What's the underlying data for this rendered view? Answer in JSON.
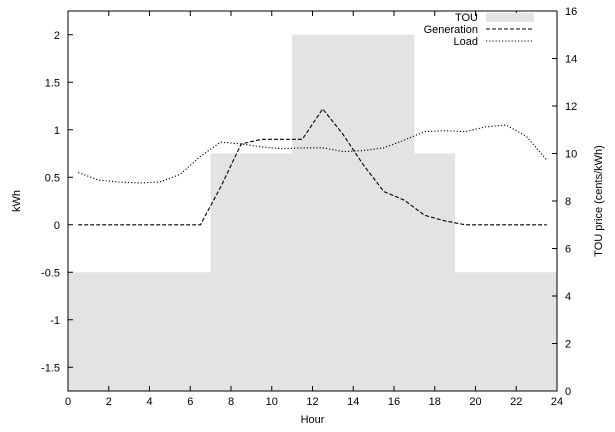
{
  "chart_data": {
    "type": "line",
    "xlabel": "Hour",
    "ylabel_left": "kWh",
    "ylabel_right": "TOU price (cents/kWh)",
    "xlim": [
      0,
      24
    ],
    "ylim_left": [
      -1.75,
      2.25
    ],
    "ylim_right": [
      0,
      16
    ],
    "x_ticks": [
      0,
      2,
      4,
      6,
      8,
      10,
      12,
      14,
      16,
      18,
      20,
      22,
      24
    ],
    "y_ticks_left": [
      -1.5,
      -1,
      -0.5,
      0,
      0.5,
      1,
      1.5,
      2
    ],
    "y_ticks_right": [
      0,
      2,
      4,
      6,
      8,
      10,
      12,
      14,
      16
    ],
    "legend_position": "top-right",
    "colors": {
      "tou": "#e3e3e3",
      "lines": "#000000"
    },
    "series": [
      {
        "name": "TOU",
        "style": "bars",
        "axis": "right",
        "segments": [
          {
            "x_start": 0,
            "x_end": 7,
            "value": 5
          },
          {
            "x_start": 7,
            "x_end": 11,
            "value": 10
          },
          {
            "x_start": 11,
            "x_end": 17,
            "value": 15
          },
          {
            "x_start": 17,
            "x_end": 19,
            "value": 10
          },
          {
            "x_start": 19,
            "x_end": 24,
            "value": 5
          }
        ]
      },
      {
        "name": "Generation",
        "style": "dashed",
        "axis": "left",
        "x": [
          0.5,
          1.5,
          2.5,
          3.5,
          4.5,
          5.5,
          6.5,
          7.5,
          8.5,
          9.5,
          10.5,
          11.5,
          12.5,
          13.5,
          14.5,
          15.5,
          16.5,
          17.5,
          18.5,
          19.5,
          20.5,
          21.5,
          22.5,
          23.5
        ],
        "values": [
          0,
          0,
          0,
          0,
          0,
          0,
          0,
          0.4,
          0.85,
          0.9,
          0.9,
          0.9,
          1.22,
          0.95,
          0.63,
          0.35,
          0.26,
          0.1,
          0.04,
          0,
          0,
          0,
          0,
          0
        ]
      },
      {
        "name": "Load",
        "style": "dotted",
        "axis": "left",
        "x": [
          0.5,
          1.5,
          2.5,
          3.5,
          4.5,
          5.5,
          6.5,
          7.5,
          8.5,
          9.5,
          10.5,
          11.5,
          12.5,
          13.5,
          14.5,
          15.5,
          16.5,
          17.5,
          18.5,
          19.5,
          20.5,
          21.5,
          22.5,
          23.5
        ],
        "values": [
          0.55,
          0.47,
          0.45,
          0.44,
          0.45,
          0.53,
          0.72,
          0.87,
          0.85,
          0.82,
          0.8,
          0.81,
          0.81,
          0.77,
          0.78,
          0.81,
          0.89,
          0.98,
          0.99,
          0.98,
          1.03,
          1.05,
          0.93,
          0.68
        ]
      }
    ]
  }
}
